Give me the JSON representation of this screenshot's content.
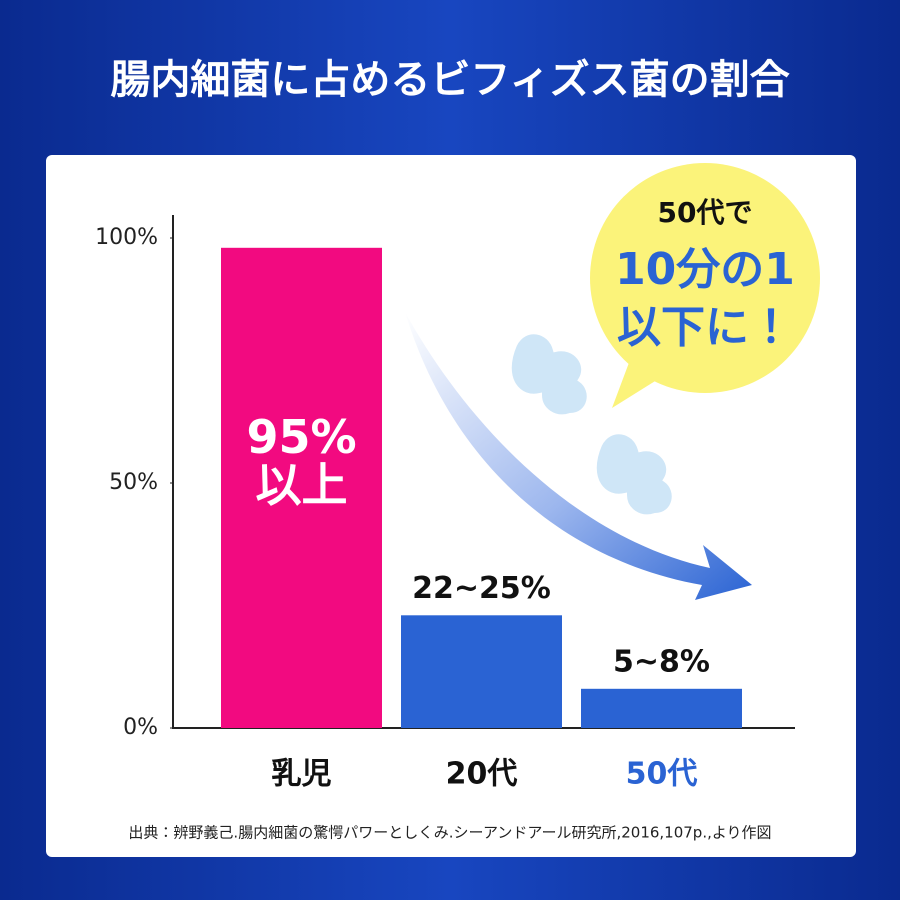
{
  "chart_data": {
    "type": "bar",
    "title": "腸内細菌に占めるビフィズス菌の割合",
    "categories": [
      "乳児",
      "20代",
      "50代"
    ],
    "values": [
      98,
      23,
      8
    ],
    "value_labels": [
      "95%以上",
      "22~25%",
      "5~8%"
    ],
    "colors": [
      "#f20a80",
      "#2a63d3",
      "#2a63d3"
    ],
    "category_label_colors": [
      "#111111",
      "#111111",
      "#2a63d3"
    ],
    "ylim": [
      0,
      105
    ],
    "yticks": [
      {
        "value": 0,
        "label": "0%"
      },
      {
        "value": 50,
        "label": "50%"
      },
      {
        "value": 100,
        "label": "100%"
      }
    ],
    "callout": [
      "50代で",
      "10分の1",
      "以下に！"
    ],
    "source": "出典：辨野義己.腸内細菌の驚愕パワーとしくみ.シーアンドアール研究所,2016,107p.,より作図"
  }
}
